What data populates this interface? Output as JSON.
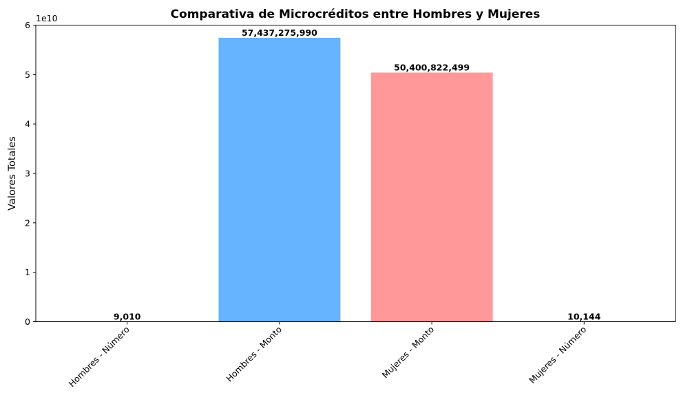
{
  "chart_data": {
    "type": "bar",
    "title": "Comparativa de Microcréditos entre Hombres y Mujeres",
    "xlabel": "",
    "ylabel": "Valores Totales",
    "y_offset_label": "1e10",
    "categories": [
      "Hombres - Número",
      "Hombres - Monto",
      "Mujeres - Monto",
      "Mujeres - Número"
    ],
    "values": [
      9010,
      57437275990,
      50400822499,
      10144
    ],
    "data_labels": [
      "9,010",
      "57,437,275,990",
      "50,400,822,499",
      "10,144"
    ],
    "colors": [
      "#66b3ff",
      "#66b3ff",
      "#ff9999",
      "#ff9999"
    ],
    "ylim": [
      0,
      60000000000
    ],
    "yticks": [
      0,
      10000000000,
      20000000000,
      30000000000,
      40000000000,
      50000000000,
      60000000000
    ],
    "ytick_labels": [
      "0",
      "1",
      "2",
      "3",
      "4",
      "5",
      "6"
    ],
    "x_tick_rotation": 45,
    "grid": false,
    "legend": "none"
  }
}
